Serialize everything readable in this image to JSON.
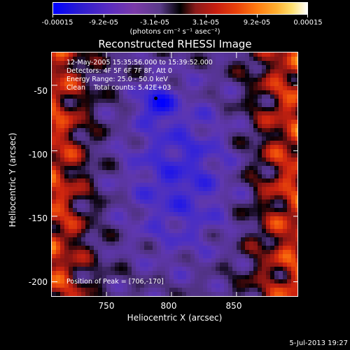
{
  "colorbar": {
    "ticks": [
      "-0.00015",
      "-9.2e-05",
      "-3.1e-05",
      "3.1e-05",
      "9.2e-05",
      "0.00015"
    ],
    "units_label": "(photons cm⁻² s⁻¹ asec⁻²)"
  },
  "title": "Reconstructed RHESSI Image",
  "info": {
    "line1": "12-May-2005 15:35:56.000 to 15:39:52.000",
    "line2": "Detectors: 4F 5F 6F 7F 8F, Att 0",
    "line3": "Energy Range: 25.0 - 50.0 keV",
    "line4": "Clean    Total counts: 5.42E+03",
    "peak": "Position of Peak = [706,-170]"
  },
  "chart_data": {
    "type": "heatmap",
    "title": "Reconstructed RHESSI Image",
    "xlabel": "Heliocentric X (arcsec)",
    "ylabel": "Heliocentric Y (arcsec)",
    "xlim": [
      708,
      898
    ],
    "ylim": [
      -212,
      -25
    ],
    "x_ticks": [
      "750",
      "800",
      "850"
    ],
    "y_ticks": [
      "-50",
      "-100",
      "-150",
      "-200"
    ],
    "x_tick_values": [
      750,
      800,
      850
    ],
    "y_tick_values": [
      -50,
      -100,
      -150,
      -200
    ],
    "colorbar_range": [
      -0.00015,
      0.00015
    ],
    "marker": {
      "x": 788,
      "y": -60
    }
  },
  "footer": {
    "timestamp": "5-Jul-2013 19:27"
  }
}
